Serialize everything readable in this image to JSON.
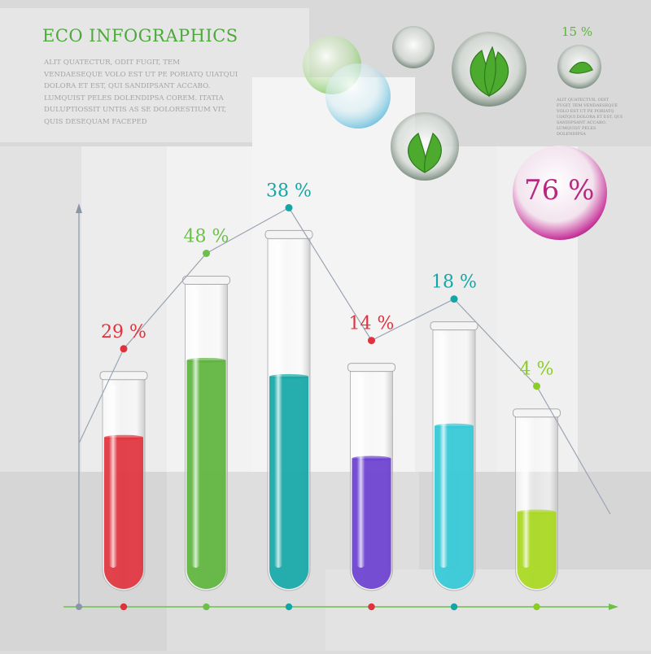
{
  "colors": {
    "green": "#5cb43c",
    "red": "#e0323c",
    "teal": "#14a6a6",
    "purple": "#6a3fd0",
    "cyan": "#32c8d6",
    "lime": "#a8d81e",
    "magenta": "#c8329a",
    "text_gray": "#a4a4a4"
  },
  "header": {
    "title": "ECO INFOGRAPHICS",
    "body": "Alit quatectur, odit fugit, tem vendaeseque volo est ut pe poriatq uiatqui dolora et est, qui sandipsant accabo. Lumquist peles dolendipsa corem. Itatia duluptiossit untis as se dolorestium vit, quis desequam faceped"
  },
  "side_panel": {
    "percent": "15 %",
    "body": "Alit quatectur, odit fugit, tem vendaeseque volo est ut pe poriatq uiatqui dolora et est, qui sandipsant accabo. Lumquist peles dolendipsa"
  },
  "highlight": {
    "percent": "76 %",
    "icon": "leaf-icon"
  },
  "chart_data": {
    "type": "bar",
    "categories": [
      "",
      "",
      "",
      "",
      "",
      ""
    ],
    "series": [
      {
        "values": [
          29,
          48,
          38,
          14,
          18,
          4
        ],
        "labels": [
          "29 %",
          "48 %",
          "38 %",
          "14 %",
          "18 %",
          "4 %"
        ],
        "colors": [
          "#e0323c",
          "#5cb43c",
          "#14a6a6",
          "#6a3fd0",
          "#32c8d6",
          "#a8d81e"
        ],
        "label_colors": [
          "#e0323c",
          "#6cc04a",
          "#14a6a6",
          "#e0323c",
          "#14a6a6",
          "#8ccc28"
        ],
        "fill_fractions": [
          0.71,
          0.74,
          0.6,
          0.59,
          0.62,
          0.44
        ],
        "tube_heights": [
          0.52,
          0.75,
          0.86,
          0.54,
          0.64,
          0.43
        ]
      }
    ],
    "grid": false,
    "legend": "none"
  }
}
